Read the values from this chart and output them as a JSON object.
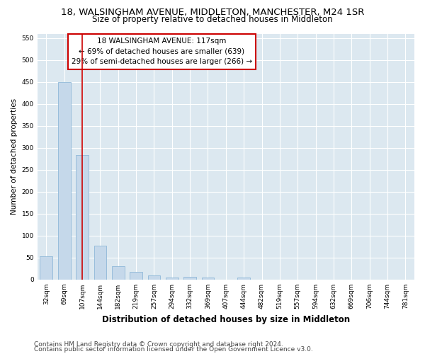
{
  "title_line1": "18, WALSINGHAM AVENUE, MIDDLETON, MANCHESTER, M24 1SR",
  "title_line2": "Size of property relative to detached houses in Middleton",
  "xlabel": "Distribution of detached houses by size in Middleton",
  "ylabel": "Number of detached properties",
  "categories": [
    "32sqm",
    "69sqm",
    "107sqm",
    "144sqm",
    "182sqm",
    "219sqm",
    "257sqm",
    "294sqm",
    "332sqm",
    "369sqm",
    "407sqm",
    "444sqm",
    "482sqm",
    "519sqm",
    "557sqm",
    "594sqm",
    "632sqm",
    "669sqm",
    "706sqm",
    "744sqm",
    "781sqm"
  ],
  "values": [
    53,
    450,
    283,
    78,
    31,
    17,
    10,
    5,
    6,
    5,
    0,
    5,
    0,
    0,
    0,
    0,
    0,
    0,
    0,
    0,
    0
  ],
  "bar_color": "#c5d8ea",
  "bar_edge_color": "#8fb8d8",
  "vline_x_index": 2,
  "vline_color": "#cc0000",
  "annotation_text": "18 WALSINGHAM AVENUE: 117sqm\n← 69% of detached houses are smaller (639)\n29% of semi-detached houses are larger (266) →",
  "annotation_box_color": "#ffffff",
  "annotation_box_edge": "#cc0000",
  "ylim": [
    0,
    560
  ],
  "yticks": [
    0,
    50,
    100,
    150,
    200,
    250,
    300,
    350,
    400,
    450,
    500,
    550
  ],
  "background_color": "#dce8f0",
  "grid_color": "#ffffff",
  "fig_bg": "#ffffff",
  "footer1": "Contains HM Land Registry data © Crown copyright and database right 2024.",
  "footer2": "Contains public sector information licensed under the Open Government Licence v3.0.",
  "title_fontsize": 9.5,
  "subtitle_fontsize": 8.5,
  "xlabel_fontsize": 8.5,
  "ylabel_fontsize": 7.5,
  "tick_fontsize": 6.5,
  "annotation_fontsize": 7.5,
  "footer_fontsize": 6.5
}
